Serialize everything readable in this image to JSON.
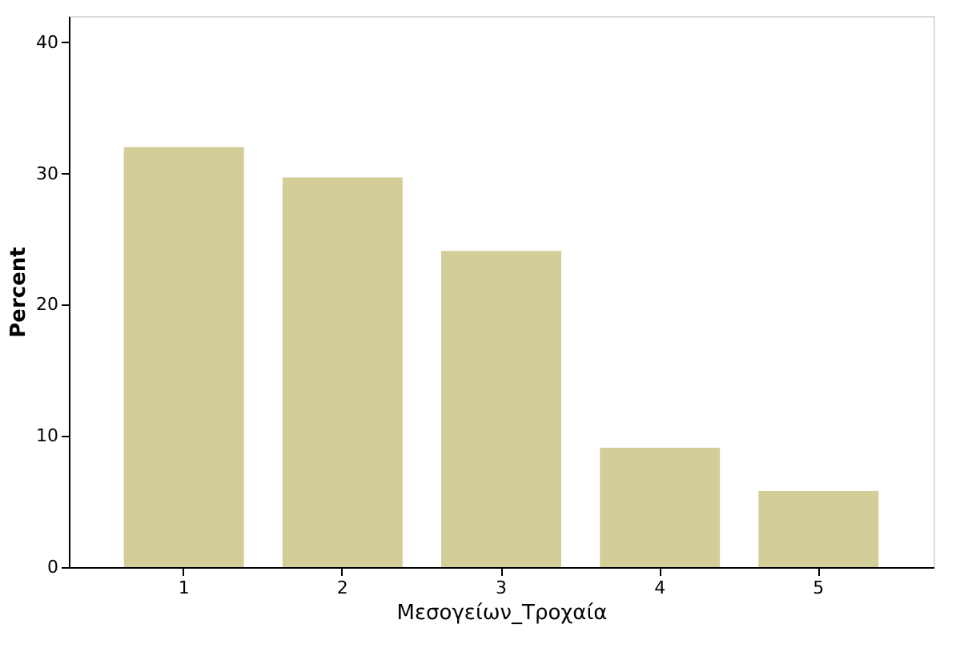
{
  "chart_data": {
    "type": "bar",
    "xlabel": "Μεσογείων_Τροχαία",
    "ylabel": "Percent",
    "categories": [
      "1",
      "2",
      "3",
      "4",
      "5"
    ],
    "values": [
      32.0,
      29.7,
      24.1,
      9.1,
      5.8
    ],
    "color": "#d3ce97",
    "ylim": [
      0,
      42
    ],
    "yticks": [
      0,
      10,
      20,
      30,
      40
    ],
    "grid": false
  }
}
